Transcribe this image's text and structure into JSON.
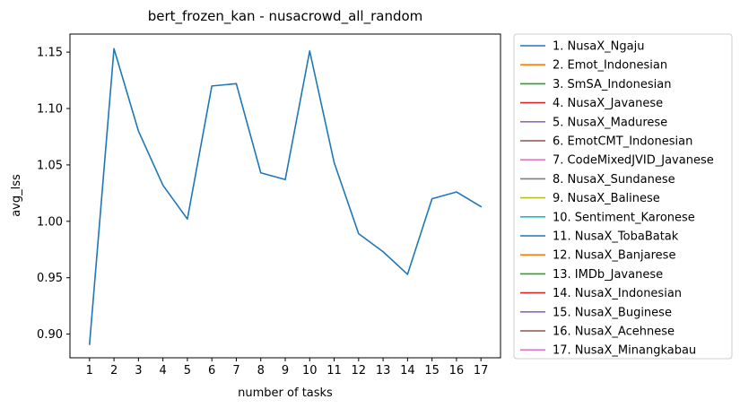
{
  "chart_data": {
    "type": "line",
    "title": "bert_frozen_kan - nusacrowd_all_random",
    "xlabel": "number of tasks",
    "ylabel": "avg_lss",
    "x": [
      1,
      2,
      3,
      4,
      5,
      6,
      7,
      8,
      9,
      10,
      11,
      12,
      13,
      14,
      15,
      16,
      17
    ],
    "xlim": [
      0.2,
      17.8
    ],
    "ylim": [
      0.879,
      1.166
    ],
    "yticks": [
      0.9,
      0.95,
      1.0,
      1.05,
      1.1,
      1.15
    ],
    "ytick_labels": [
      "0.90",
      "0.95",
      "1.00",
      "1.05",
      "1.10",
      "1.15"
    ],
    "xtick_labels": [
      "1",
      "2",
      "3",
      "4",
      "5",
      "6",
      "7",
      "8",
      "9",
      "10",
      "11",
      "12",
      "13",
      "14",
      "15",
      "16",
      "17"
    ],
    "grid": false,
    "legend_position": "outside-right",
    "series": [
      {
        "name": "1. NusaX_Ngaju",
        "color": "#1f77b4",
        "values": [
          0.891,
          1.153,
          1.08,
          1.032,
          1.002,
          1.12,
          1.122,
          1.043,
          1.037,
          1.151,
          1.052,
          0.989,
          0.973,
          0.953,
          1.02,
          1.026,
          1.013
        ]
      }
    ],
    "legend": [
      {
        "label": "1. NusaX_Ngaju",
        "color": "#1f77b4"
      },
      {
        "label": "2. Emot_Indonesian",
        "color": "#ff7f0e"
      },
      {
        "label": "3. SmSA_Indonesian",
        "color": "#2ca02c"
      },
      {
        "label": "4. NusaX_Javanese",
        "color": "#d62728"
      },
      {
        "label": "5. NusaX_Madurese",
        "color": "#9467bd"
      },
      {
        "label": "6. EmotCMT_Indonesian",
        "color": "#8c564b"
      },
      {
        "label": "7. CodeMixedJVID_Javanese",
        "color": "#e377c2"
      },
      {
        "label": "8. NusaX_Sundanese",
        "color": "#7f7f7f"
      },
      {
        "label": "9. NusaX_Balinese",
        "color": "#bcbd22"
      },
      {
        "label": "10. Sentiment_Karonese",
        "color": "#17becf"
      },
      {
        "label": "11. NusaX_TobaBatak",
        "color": "#1f77b4"
      },
      {
        "label": "12. NusaX_Banjarese",
        "color": "#ff7f0e"
      },
      {
        "label": "13. IMDb_Javanese",
        "color": "#2ca02c"
      },
      {
        "label": "14. NusaX_Indonesian",
        "color": "#d62728"
      },
      {
        "label": "15. NusaX_Buginese",
        "color": "#9467bd"
      },
      {
        "label": "16. NusaX_Acehnese",
        "color": "#8c564b"
      },
      {
        "label": "17. NusaX_Minangkabau",
        "color": "#e377c2"
      }
    ]
  }
}
